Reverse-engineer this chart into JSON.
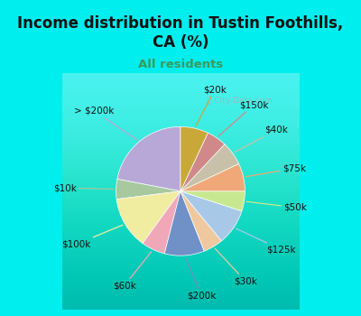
{
  "title": "Income distribution in Tustin Foothills,\nCA (%)",
  "subtitle": "All residents",
  "title_color": "#111111",
  "subtitle_color": "#3a9a5c",
  "background_color": "#00eeee",
  "chart_bg_top": "#e0f5e0",
  "chart_bg_bottom": "#d0eed8",
  "watermark": "ⓘ City-Data.com",
  "labels": [
    "> $200k",
    "$10k",
    "$100k",
    "$60k",
    "$200k",
    "$30k",
    "$125k",
    "$50k",
    "$75k",
    "$40k",
    "$150k",
    "$20k"
  ],
  "values": [
    22,
    5,
    13,
    6,
    10,
    5,
    9,
    5,
    7,
    6,
    5,
    7
  ],
  "colors": [
    "#b8a8d8",
    "#a8c8a0",
    "#f0eca0",
    "#f0a8b8",
    "#7090c8",
    "#f0c8a0",
    "#a8c8e8",
    "#c8e890",
    "#f0a878",
    "#c8c0a8",
    "#d08888",
    "#c8a838"
  ],
  "startangle": 90,
  "label_fontsize": 7.5,
  "title_fontsize": 12,
  "subtitle_fontsize": 9.5
}
